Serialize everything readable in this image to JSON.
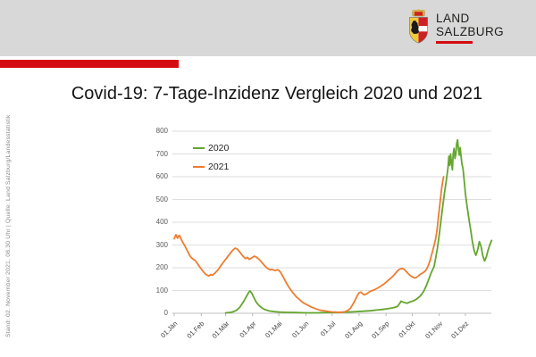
{
  "header": {
    "logo_line1": "LAND",
    "logo_line2": "SALZBURG",
    "background": "#d8d8d8",
    "accent_color": "#d50b12"
  },
  "side_note": "Stand: 02. November 2021, 08.30 Uhr | Quelle: Land Salzburg/Landesstatistik",
  "title": "Covid-19: 7-Tage-Inzidenz Vergleich 2020 und 2021",
  "chart_data": {
    "type": "line",
    "title": "Covid-19: 7-Tage-Inzidenz Vergleich 2020 und 2021",
    "xlabel": "",
    "ylabel": "",
    "ylim": [
      0,
      800
    ],
    "grid": "horizontal",
    "legend_position": "top-left-inside",
    "y_ticks": [
      0,
      100,
      200,
      300,
      400,
      500,
      600,
      700,
      800
    ],
    "x_tick_labels": [
      "01.Jän",
      "01.Feb",
      "01.Mär",
      "01.Apr",
      "01.Mai",
      "01.Jun",
      "01.Jul",
      "01.Aug",
      "01.Sep",
      "01.Okt",
      "01.Nov",
      "01.Dez"
    ],
    "x_tick_days": [
      1,
      32,
      60,
      91,
      121,
      152,
      182,
      213,
      244,
      274,
      305,
      335
    ],
    "legend": [
      {
        "name": "2020",
        "color": "#64a62f"
      },
      {
        "name": "2021",
        "color": "#ed7d31"
      }
    ],
    "series": [
      {
        "name": "2020",
        "color": "#64a62f",
        "points": [
          [
            60,
            2
          ],
          [
            64,
            3
          ],
          [
            68,
            6
          ],
          [
            72,
            12
          ],
          [
            76,
            25
          ],
          [
            80,
            48
          ],
          [
            84,
            75
          ],
          [
            87,
            95
          ],
          [
            88,
            98
          ],
          [
            90,
            88
          ],
          [
            92,
            72
          ],
          [
            95,
            50
          ],
          [
            98,
            35
          ],
          [
            101,
            25
          ],
          [
            105,
            16
          ],
          [
            110,
            10
          ],
          [
            116,
            7
          ],
          [
            122,
            5
          ],
          [
            130,
            4
          ],
          [
            140,
            3
          ],
          [
            152,
            2
          ],
          [
            165,
            2
          ],
          [
            178,
            3
          ],
          [
            190,
            4
          ],
          [
            200,
            5
          ],
          [
            210,
            7
          ],
          [
            218,
            9
          ],
          [
            226,
            11
          ],
          [
            233,
            14
          ],
          [
            240,
            17
          ],
          [
            246,
            20
          ],
          [
            252,
            24
          ],
          [
            257,
            30
          ],
          [
            260,
            45
          ],
          [
            261,
            53
          ],
          [
            263,
            50
          ],
          [
            266,
            46
          ],
          [
            268,
            44
          ],
          [
            271,
            49
          ],
          [
            275,
            54
          ],
          [
            279,
            62
          ],
          [
            283,
            75
          ],
          [
            287,
            95
          ],
          [
            290,
            120
          ],
          [
            293,
            150
          ],
          [
            296,
            180
          ],
          [
            299,
            205
          ],
          [
            301,
            245
          ],
          [
            303,
            290
          ],
          [
            305,
            345
          ],
          [
            307,
            410
          ],
          [
            309,
            470
          ],
          [
            311,
            530
          ],
          [
            313,
            580
          ],
          [
            315,
            640
          ],
          [
            316,
            690
          ],
          [
            317,
            650
          ],
          [
            318,
            700
          ],
          [
            319,
            660
          ],
          [
            320,
            630
          ],
          [
            321,
            700
          ],
          [
            322,
            725
          ],
          [
            323,
            680
          ],
          [
            324,
            700
          ],
          [
            325,
            745
          ],
          [
            326,
            762
          ],
          [
            327,
            720
          ],
          [
            328,
            695
          ],
          [
            329,
            728
          ],
          [
            330,
            690
          ],
          [
            331,
            655
          ],
          [
            332,
            640
          ],
          [
            333,
            610
          ],
          [
            335,
            525
          ],
          [
            337,
            465
          ],
          [
            339,
            415
          ],
          [
            341,
            365
          ],
          [
            343,
            315
          ],
          [
            345,
            275
          ],
          [
            347,
            255
          ],
          [
            349,
            278
          ],
          [
            351,
            315
          ],
          [
            353,
            292
          ],
          [
            355,
            252
          ],
          [
            357,
            230
          ],
          [
            359,
            248
          ],
          [
            361,
            278
          ],
          [
            363,
            300
          ],
          [
            365,
            320
          ]
        ]
      },
      {
        "name": "2021",
        "color": "#ed7d31",
        "points": [
          [
            1,
            328
          ],
          [
            2,
            338
          ],
          [
            3,
            345
          ],
          [
            4,
            336
          ],
          [
            5,
            330
          ],
          [
            6,
            340
          ],
          [
            7,
            342
          ],
          [
            9,
            325
          ],
          [
            11,
            310
          ],
          [
            13,
            298
          ],
          [
            15,
            282
          ],
          [
            17,
            268
          ],
          [
            19,
            252
          ],
          [
            21,
            243
          ],
          [
            23,
            237
          ],
          [
            25,
            232
          ],
          [
            27,
            222
          ],
          [
            29,
            210
          ],
          [
            31,
            200
          ],
          [
            33,
            190
          ],
          [
            35,
            180
          ],
          [
            37,
            172
          ],
          [
            39,
            167
          ],
          [
            41,
            164
          ],
          [
            43,
            170
          ],
          [
            45,
            167
          ],
          [
            47,
            174
          ],
          [
            49,
            182
          ],
          [
            51,
            190
          ],
          [
            53,
            200
          ],
          [
            55,
            212
          ],
          [
            57,
            222
          ],
          [
            59,
            232
          ],
          [
            61,
            242
          ],
          [
            63,
            252
          ],
          [
            65,
            262
          ],
          [
            67,
            272
          ],
          [
            69,
            280
          ],
          [
            71,
            286
          ],
          [
            73,
            283
          ],
          [
            75,
            275
          ],
          [
            77,
            265
          ],
          [
            79,
            255
          ],
          [
            81,
            247
          ],
          [
            83,
            240
          ],
          [
            85,
            246
          ],
          [
            87,
            237
          ],
          [
            89,
            241
          ],
          [
            91,
            246
          ],
          [
            93,
            251
          ],
          [
            95,
            247
          ],
          [
            97,
            241
          ],
          [
            99,
            234
          ],
          [
            101,
            226
          ],
          [
            103,
            217
          ],
          [
            105,
            208
          ],
          [
            107,
            200
          ],
          [
            109,
            195
          ],
          [
            111,
            191
          ],
          [
            113,
            193
          ],
          [
            115,
            190
          ],
          [
            117,
            188
          ],
          [
            119,
            191
          ],
          [
            121,
            189
          ],
          [
            123,
            180
          ],
          [
            125,
            166
          ],
          [
            127,
            152
          ],
          [
            129,
            138
          ],
          [
            131,
            124
          ],
          [
            133,
            112
          ],
          [
            135,
            101
          ],
          [
            137,
            91
          ],
          [
            139,
            82
          ],
          [
            141,
            73
          ],
          [
            143,
            66
          ],
          [
            145,
            59
          ],
          [
            147,
            52
          ],
          [
            149,
            46
          ],
          [
            152,
            40
          ],
          [
            155,
            34
          ],
          [
            158,
            28
          ],
          [
            161,
            23
          ],
          [
            164,
            19
          ],
          [
            167,
            15
          ],
          [
            170,
            12
          ],
          [
            174,
            10
          ],
          [
            178,
            8
          ],
          [
            182,
            6
          ],
          [
            186,
            5
          ],
          [
            190,
            4
          ],
          [
            194,
            5
          ],
          [
            197,
            7
          ],
          [
            200,
            12
          ],
          [
            203,
            22
          ],
          [
            206,
            40
          ],
          [
            209,
            62
          ],
          [
            211,
            78
          ],
          [
            213,
            90
          ],
          [
            215,
            93
          ],
          [
            217,
            86
          ],
          [
            219,
            81
          ],
          [
            221,
            84
          ],
          [
            223,
            89
          ],
          [
            225,
            94
          ],
          [
            227,
            98
          ],
          [
            229,
            101
          ],
          [
            231,
            104
          ],
          [
            233,
            108
          ],
          [
            235,
            112
          ],
          [
            237,
            117
          ],
          [
            239,
            122
          ],
          [
            241,
            127
          ],
          [
            243,
            133
          ],
          [
            245,
            140
          ],
          [
            247,
            147
          ],
          [
            249,
            153
          ],
          [
            251,
            160
          ],
          [
            253,
            168
          ],
          [
            255,
            177
          ],
          [
            257,
            186
          ],
          [
            259,
            192
          ],
          [
            261,
            196
          ],
          [
            263,
            197
          ],
          [
            265,
            192
          ],
          [
            267,
            184
          ],
          [
            269,
            176
          ],
          [
            271,
            168
          ],
          [
            273,
            162
          ],
          [
            275,
            158
          ],
          [
            277,
            155
          ],
          [
            279,
            158
          ],
          [
            281,
            164
          ],
          [
            283,
            170
          ],
          [
            285,
            175
          ],
          [
            287,
            180
          ],
          [
            289,
            186
          ],
          [
            291,
            198
          ],
          [
            293,
            215
          ],
          [
            295,
            240
          ],
          [
            297,
            268
          ],
          [
            299,
            298
          ],
          [
            301,
            330
          ],
          [
            302,
            355
          ],
          [
            303,
            385
          ],
          [
            304,
            420
          ],
          [
            305,
            455
          ],
          [
            306,
            490
          ],
          [
            307,
            525
          ],
          [
            308,
            555
          ],
          [
            309,
            580
          ],
          [
            310,
            600
          ]
        ]
      }
    ]
  }
}
